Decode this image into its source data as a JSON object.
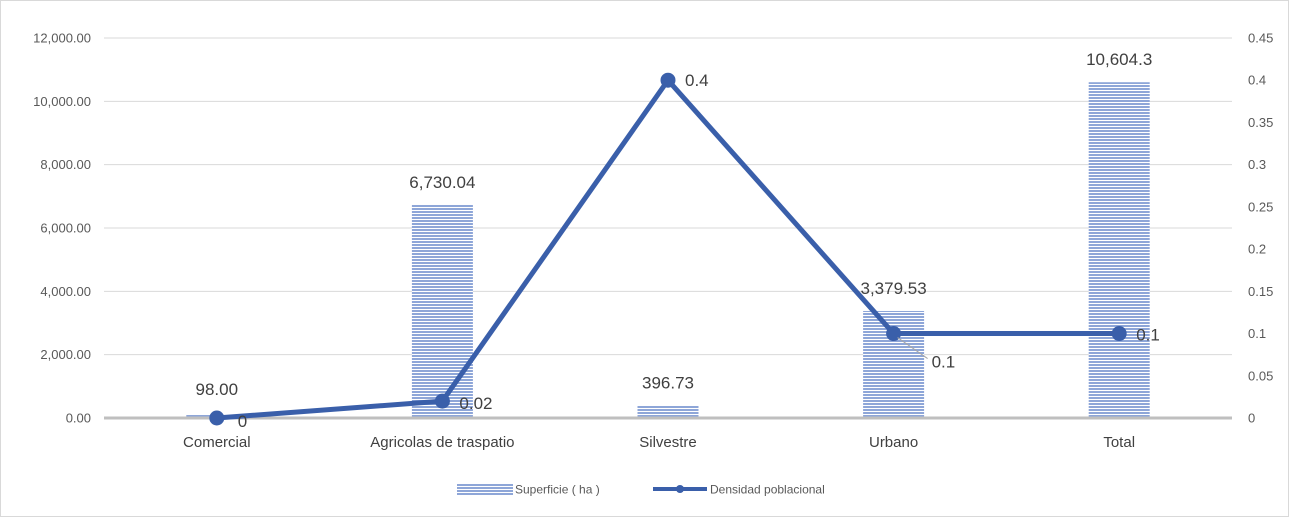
{
  "chart_data": {
    "type": "bar",
    "categories": [
      "Comercial",
      "Agricolas de traspatio",
      "Silvestre",
      "Urbano",
      "Total"
    ],
    "series": [
      {
        "name": "Superficie ( ha )",
        "type": "bar",
        "axis": "left",
        "values": [
          98.0,
          6730.04,
          396.73,
          3379.53,
          10604.3
        ],
        "labels": [
          "98.00",
          "6,730.04",
          "396.73",
          "3,379.53",
          "10,604.3"
        ]
      },
      {
        "name": "Densidad poblacional",
        "type": "line",
        "axis": "right",
        "values": [
          0,
          0.02,
          0.4,
          0.1,
          0.1
        ],
        "labels": [
          "0",
          "0.02",
          "0.4",
          "0.1",
          "0.1"
        ]
      }
    ],
    "y_left": {
      "ylim": [
        0,
        12000
      ],
      "ticks": [
        "0.00",
        "2,000.00",
        "4,000.00",
        "6,000.00",
        "8,000.00",
        "10,000.00",
        "12,000.00"
      ]
    },
    "y_right": {
      "ylim": [
        0,
        0.45
      ],
      "ticks": [
        "0",
        "0.05",
        "0.1",
        "0.15",
        "0.2",
        "0.25",
        "0.3",
        "0.35",
        "0.4",
        "0.45"
      ]
    },
    "grid": true,
    "legend_position": "bottom",
    "colors": {
      "bar": "#8ea6d8",
      "bar_stripe": "#ffffff",
      "line": "#3a5faa",
      "grid": "#d9d9d9",
      "axis": "#bfbfbf"
    }
  }
}
